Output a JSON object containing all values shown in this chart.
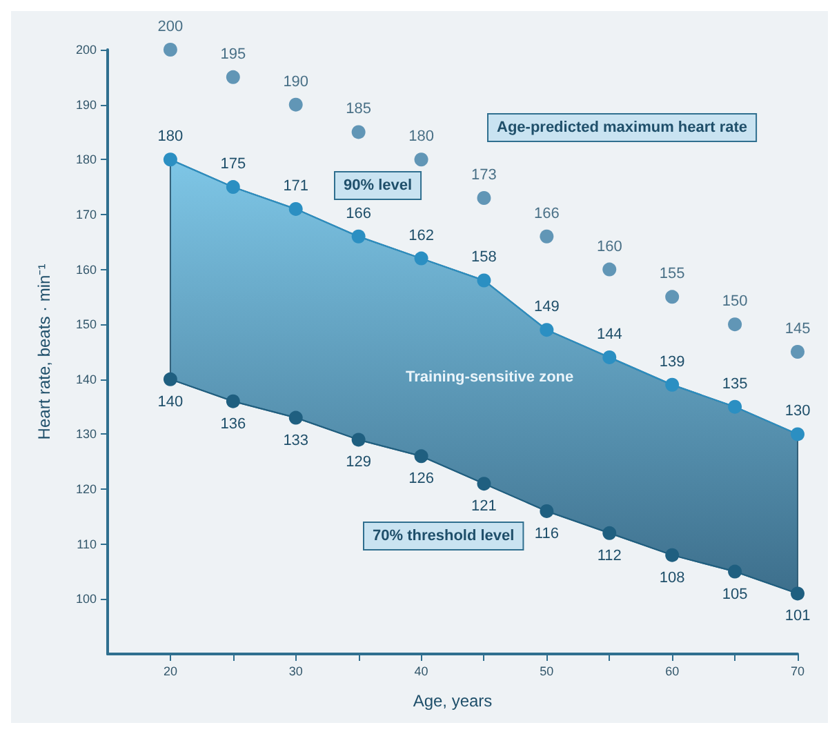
{
  "chart_data": {
    "type": "scatter",
    "xlabel": "Age, years",
    "ylabel": "Heart rate, beats · min⁻¹",
    "x": [
      20,
      25,
      30,
      35,
      40,
      45,
      50,
      55,
      60,
      65,
      70
    ],
    "series": [
      {
        "color": "#3d7ea6",
        "values": [
          200,
          195,
          190,
          185,
          180,
          173,
          166,
          160,
          155,
          150,
          145
        ]
      },
      {
        "type": "line",
        "color": "#2b8fc2",
        "values": [
          180,
          175,
          171,
          166,
          162,
          158,
          149,
          144,
          139,
          135,
          130
        ]
      },
      {
        "type": "line",
        "color": "#1f5f80",
        "values": [
          140,
          136,
          133,
          129,
          126,
          121,
          116,
          112,
          108,
          105,
          101
        ]
      }
    ],
    "xlim": [
      15,
      70
    ],
    "xticks": [
      20,
      {
        "value": 25,
        "label": null
      },
      30,
      {
        "value": 35,
        "label": null
      },
      40,
      {
        "value": 45,
        "label": null
      },
      50,
      {
        "value": 55,
        "label": null
      },
      60,
      {
        "value": 65,
        "label": null
      },
      70
    ],
    "ylim": [
      90,
      200
    ],
    "yticks": [
      100,
      110,
      120,
      130,
      140,
      150,
      160,
      170,
      180,
      190,
      200
    ],
    "annotations": [
      "Age-predicted maximum heart rate",
      "90% level",
      "Training-sensitive zone",
      "70% threshold level"
    ],
    "data_labels": true,
    "marker": "circle",
    "grid": false
  }
}
